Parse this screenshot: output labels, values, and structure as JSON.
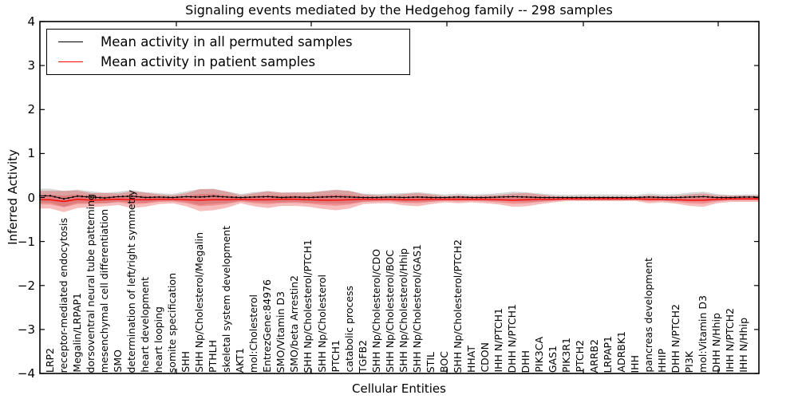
{
  "title": "Signaling events mediated by the Hedgehog family -- 298 samples",
  "axes": {
    "xlabel": "Cellular Entities",
    "ylabel": "Inferred Activity",
    "ytick_labels": [
      "4",
      "3",
      "2",
      "1",
      "0",
      "−1",
      "−2",
      "−3",
      "−4"
    ]
  },
  "legend": {
    "items": [
      {
        "label": "Mean activity in all permuted samples",
        "color": "#000000"
      },
      {
        "label": "Mean activity in patient samples",
        "color": "#ff0000"
      }
    ]
  },
  "colors": {
    "permuted_line": "#000000",
    "patient_line": "#ff0000",
    "patient_band": "#e62e2e",
    "permuted_band": "#8a8a8a",
    "frame": "#000000"
  },
  "chart_data": {
    "type": "area",
    "title": "Signaling events mediated by the Hedgehog family -- 298 samples",
    "xlabel": "Cellular Entities",
    "ylabel": "Inferred Activity",
    "ylim": [
      -4,
      4
    ],
    "yticks": [
      4,
      3,
      2,
      1,
      0,
      -1,
      -2,
      -3,
      -4
    ],
    "grid": false,
    "legend_position": "upper left",
    "categories": [
      "LRP2",
      "receptor-mediated endocytosis",
      "Megalin/LRPAP1",
      "dorsoventral neural tube patterning",
      "mesenchymal cell differentiation",
      "SMO",
      "determination of left/right symmetry",
      "heart development",
      "heart looping",
      "somite specification",
      "SHH",
      "SHH Np/Cholesterol/Megalin",
      "PTHLH",
      "skeletal system development",
      "AKT1",
      "mol:Cholesterol",
      "EntrezGene:84976",
      "SMO/Vitamin D3",
      "SMO/beta Arrestin2",
      "SHH Np/Cholesterol/PTCH1",
      "SHH Np/Cholesterol",
      "PTCH1",
      "catabolic process",
      "TGFB2",
      "SHH Np/Cholesterol/CDO",
      "SHH Np/Cholesterol/BOC",
      "SHH Np/Cholesterol/Hhip",
      "SHH Np/Cholesterol/GAS1",
      "STIL",
      "BOC",
      "SHH Np/Cholesterol/PTCH2",
      "HHAT",
      "CDON",
      "IHH N/PTCH1",
      "DHH N/PTCH1",
      "DHH",
      "PIK3CA",
      "GAS1",
      "PIK3R1",
      "PTCH2",
      "ARRB2",
      "LRPAP1",
      "ADRBK1",
      "IHH",
      "pancreas development",
      "HHIP",
      "DHH N/PTCH2",
      "PI3K",
      "mol:Vitamin D3",
      "DHH N/Hhip",
      "IHH N/PTCH2",
      "IHH N/Hhip"
    ],
    "series": [
      {
        "name": "Mean activity in all permuted samples",
        "style": "dotted-black-line",
        "color": "#000000",
        "values": [
          0.04,
          -0.03,
          0.03,
          0.01,
          -0.01,
          0.02,
          0.03,
          0.0,
          0.01,
          0.0,
          0.02,
          0.01,
          0.03,
          0.01,
          0.0,
          0.01,
          0.02,
          0.0,
          0.01,
          0.0,
          0.01,
          0.02,
          0.01,
          0.0,
          0.0,
          0.01,
          0.0,
          0.01,
          0.0,
          0.0,
          0.01,
          0.0,
          0.0,
          0.01,
          0.02,
          0.01,
          0.0,
          0.0,
          0.0,
          0.0,
          0.0,
          0.0,
          0.0,
          0.0,
          0.01,
          0.0,
          0.0,
          0.01,
          0.02,
          0.0,
          0.0,
          0.01
        ]
      },
      {
        "name": "Mean activity in patient samples",
        "style": "solid-red-line",
        "color": "#ff0000",
        "values": [
          -0.05,
          -0.09,
          -0.04,
          -0.06,
          -0.05,
          -0.04,
          -0.05,
          -0.05,
          -0.04,
          -0.04,
          -0.05,
          -0.06,
          -0.05,
          -0.05,
          -0.04,
          -0.05,
          -0.05,
          -0.04,
          -0.04,
          -0.05,
          -0.06,
          -0.06,
          -0.05,
          -0.04,
          -0.04,
          -0.04,
          -0.05,
          -0.05,
          -0.04,
          -0.04,
          -0.04,
          -0.04,
          -0.04,
          -0.05,
          -0.06,
          -0.05,
          -0.04,
          -0.04,
          -0.03,
          -0.03,
          -0.03,
          -0.03,
          -0.03,
          -0.03,
          -0.04,
          -0.04,
          -0.05,
          -0.06,
          -0.06,
          -0.04,
          -0.03,
          -0.03
        ]
      },
      {
        "name": "patient std band halfwidth",
        "style": "red-band",
        "color": "#e62e2e",
        "values": [
          0.2,
          0.24,
          0.2,
          0.16,
          0.15,
          0.13,
          0.19,
          0.16,
          0.11,
          0.09,
          0.15,
          0.25,
          0.24,
          0.18,
          0.09,
          0.15,
          0.19,
          0.15,
          0.15,
          0.16,
          0.2,
          0.23,
          0.2,
          0.11,
          0.09,
          0.09,
          0.13,
          0.15,
          0.11,
          0.07,
          0.09,
          0.07,
          0.09,
          0.11,
          0.15,
          0.15,
          0.11,
          0.07,
          0.05,
          0.05,
          0.05,
          0.05,
          0.05,
          0.05,
          0.09,
          0.07,
          0.09,
          0.13,
          0.15,
          0.09,
          0.07,
          0.07
        ]
      },
      {
        "name": "permuted std band halfwidth",
        "style": "gray-band",
        "color": "#8a8a8a",
        "values": [
          0.16,
          0.18,
          0.15,
          0.13,
          0.12,
          0.11,
          0.14,
          0.12,
          0.09,
          0.08,
          0.12,
          0.18,
          0.17,
          0.13,
          0.08,
          0.11,
          0.13,
          0.11,
          0.11,
          0.12,
          0.14,
          0.16,
          0.14,
          0.09,
          0.08,
          0.08,
          0.1,
          0.11,
          0.09,
          0.07,
          0.08,
          0.07,
          0.08,
          0.09,
          0.11,
          0.11,
          0.09,
          0.07,
          0.06,
          0.07,
          0.07,
          0.07,
          0.07,
          0.06,
          0.08,
          0.07,
          0.08,
          0.1,
          0.11,
          0.08,
          0.06,
          0.06
        ]
      }
    ]
  }
}
